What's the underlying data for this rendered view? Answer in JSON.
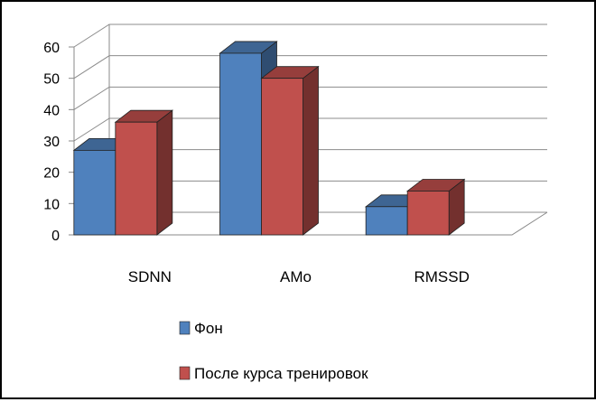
{
  "chart_data": {
    "type": "bar",
    "categories": [
      "SDNN",
      "AMo",
      "RMSSD"
    ],
    "series": [
      {
        "name": "Фон",
        "values": [
          27,
          58,
          9
        ],
        "color": "#4f81bd"
      },
      {
        "name": "После курса тренировок",
        "values": [
          36,
          50,
          14
        ],
        "color": "#c0504d"
      }
    ],
    "yticks": [
      "0",
      "10",
      "20",
      "30",
      "40",
      "50",
      "60"
    ],
    "ylim": [
      0,
      60
    ],
    "grid": true,
    "legend": "bottom-center",
    "style": "3d-clustered-column"
  }
}
